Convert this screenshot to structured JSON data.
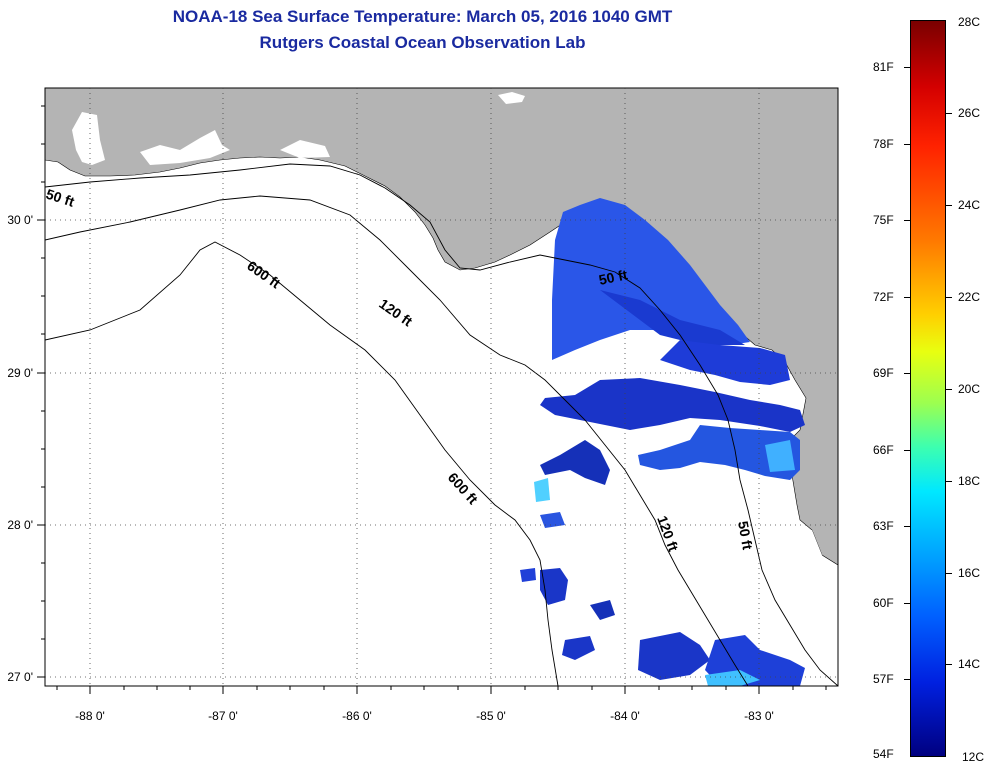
{
  "header": {
    "title": "NOAA-18 Sea Surface Temperature:  March 05, 2016 1040 GMT",
    "subtitle": "Rutgers Coastal Ocean Observation Lab"
  },
  "map": {
    "longitude_labels": [
      "-88 0'",
      "-87 0'",
      "-86 0'",
      "-85 0'",
      "-84 0'",
      "-83 0'"
    ],
    "latitude_labels": [
      "30 0'",
      "29 0'",
      "28 0'",
      "27 0'"
    ],
    "contour_labels": [
      "50 ft",
      "600 ft",
      "120 ft",
      "50 ft",
      "600 ft",
      "120 ft",
      "50 ft"
    ],
    "land_color": "#b4b4b4",
    "ocean_color": "#ffffff"
  },
  "colorbar": {
    "fahrenheit_labels": [
      "81F",
      "78F",
      "75F",
      "72F",
      "69F",
      "66F",
      "63F",
      "60F",
      "57F",
      "54F"
    ],
    "celsius_labels": [
      "28C",
      "26C",
      "24C",
      "22C",
      "20C",
      "18C",
      "16C",
      "14C",
      "12C"
    ]
  }
}
